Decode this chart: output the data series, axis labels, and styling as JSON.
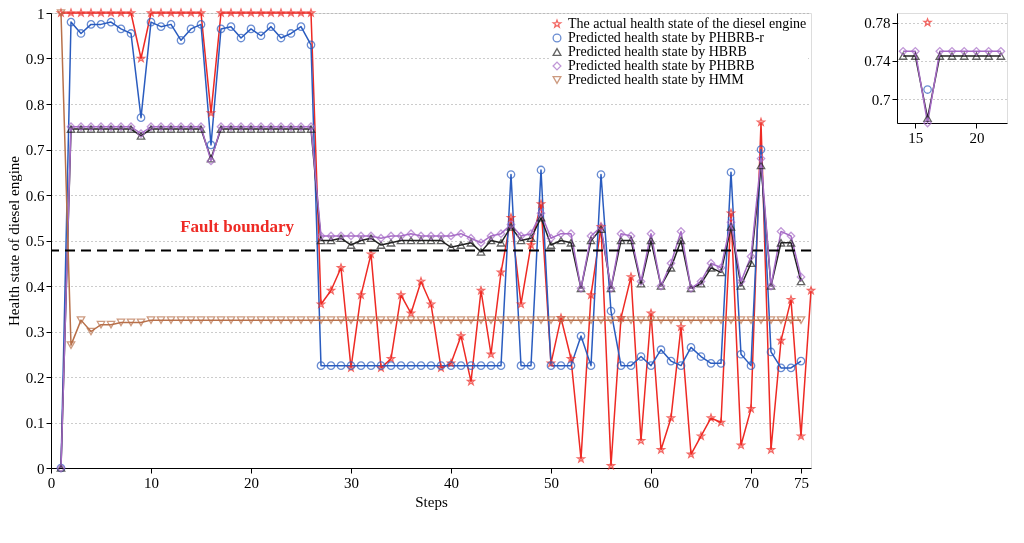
{
  "chart_data": [
    {
      "type": "line",
      "xlabel": "Steps",
      "ylabel": "Health state of diesel engine",
      "xlim": [
        0,
        76
      ],
      "xticks": [
        0,
        10,
        20,
        30,
        40,
        50,
        60,
        70,
        75
      ],
      "ylim": [
        0,
        1
      ],
      "yticks": [
        0,
        0.1,
        0.2,
        0.3,
        0.4,
        0.5,
        0.6,
        0.7,
        0.8,
        0.9,
        1
      ],
      "grid": "y",
      "legend": "top right",
      "line_style": "solid",
      "x": [
        1,
        2,
        3,
        4,
        5,
        6,
        7,
        8,
        9,
        10,
        11,
        12,
        13,
        14,
        15,
        16,
        17,
        18,
        19,
        20,
        21,
        22,
        23,
        24,
        25,
        26,
        27,
        28,
        29,
        30,
        31,
        32,
        33,
        34,
        35,
        36,
        37,
        38,
        39,
        40,
        41,
        42,
        43,
        44,
        45,
        46,
        47,
        48,
        49,
        50,
        51,
        52,
        53,
        54,
        55,
        56,
        57,
        58,
        59,
        60,
        61,
        62,
        63,
        64,
        65,
        66,
        67,
        68,
        69,
        70,
        71,
        72,
        73,
        74,
        75
      ],
      "ref_lines": [
        {
          "axis": "y",
          "value": 0.478,
          "label": "Fault boundary",
          "color": "#000000",
          "line_style": "dashed"
        }
      ],
      "series": [
        {
          "name": "The actual health state of the diesel engine",
          "color": "#ee2a24",
          "marker": "star",
          "x": [
            1,
            2,
            3,
            4,
            5,
            6,
            7,
            8,
            9,
            10,
            11,
            12,
            13,
            14,
            15,
            16,
            17,
            18,
            19,
            20,
            21,
            22,
            23,
            24,
            25,
            26,
            27,
            28,
            29,
            30,
            31,
            32,
            33,
            34,
            35,
            36,
            37,
            38,
            39,
            40,
            41,
            42,
            43,
            44,
            45,
            46,
            47,
            48,
            49,
            50,
            51,
            52,
            53,
            54,
            55,
            56,
            57,
            58,
            59,
            60,
            61,
            62,
            63,
            64,
            65,
            66,
            67,
            68,
            69,
            70,
            71,
            72,
            73,
            74,
            75,
            76
          ],
          "values": [
            1,
            1,
            1,
            1,
            1,
            1,
            1,
            1,
            0.9,
            1,
            1,
            1,
            1,
            1,
            1,
            0.78,
            1,
            1,
            1,
            1,
            1,
            1,
            1,
            1,
            1,
            1,
            0.36,
            0.39,
            0.44,
            0.22,
            0.38,
            0.47,
            0.22,
            0.24,
            0.38,
            0.34,
            0.41,
            0.36,
            0.22,
            0.23,
            0.29,
            0.19,
            0.39,
            0.25,
            0.43,
            0.55,
            0.36,
            0.49,
            0.58,
            0.23,
            0.33,
            0.24,
            0.02,
            0.38,
            0.53,
            0.005,
            0.33,
            0.42,
            0.06,
            0.34,
            0.04,
            0.11,
            0.31,
            0.03,
            0.07,
            0.11,
            0.1,
            0.56,
            0.05,
            0.13,
            0.76,
            0.04,
            0.28,
            0.37,
            0.07,
            0.39
          ]
        },
        {
          "name": "Predicted health state by PHBRB-r",
          "color": "#2a5cbf",
          "marker": "circle",
          "values": [
            0,
            0.98,
            0.955,
            0.975,
            0.975,
            0.98,
            0.965,
            0.955,
            0.77,
            0.98,
            0.97,
            0.975,
            0.94,
            0.965,
            0.975,
            0.71,
            0.965,
            0.97,
            0.945,
            0.965,
            0.95,
            0.97,
            0.945,
            0.955,
            0.97,
            0.93,
            0.225,
            0.225,
            0.225,
            0.225,
            0.225,
            0.225,
            0.225,
            0.225,
            0.225,
            0.225,
            0.225,
            0.225,
            0.225,
            0.225,
            0.225,
            0.225,
            0.225,
            0.225,
            0.225,
            0.645,
            0.225,
            0.225,
            0.655,
            0.225,
            0.225,
            0.225,
            0.29,
            0.225,
            0.645,
            0.345,
            0.225,
            0.225,
            0.245,
            0.225,
            0.26,
            0.235,
            0.225,
            0.265,
            0.245,
            0.23,
            0.23,
            0.65,
            0.25,
            0.225,
            0.7,
            0.255,
            0.22,
            0.22,
            0.235
          ]
        },
        {
          "name": "Predicted health state by HBRB",
          "color": "#222222",
          "marker": "triangle",
          "values": [
            0,
            0.745,
            0.745,
            0.745,
            0.745,
            0.745,
            0.745,
            0.745,
            0.73,
            0.745,
            0.745,
            0.745,
            0.745,
            0.745,
            0.745,
            0.68,
            0.745,
            0.745,
            0.745,
            0.745,
            0.745,
            0.745,
            0.745,
            0.745,
            0.745,
            0.745,
            0.5,
            0.5,
            0.505,
            0.49,
            0.5,
            0.505,
            0.49,
            0.495,
            0.5,
            0.5,
            0.5,
            0.5,
            0.5,
            0.485,
            0.49,
            0.495,
            0.475,
            0.5,
            0.495,
            0.53,
            0.5,
            0.505,
            0.55,
            0.49,
            0.5,
            0.495,
            0.395,
            0.5,
            0.525,
            0.395,
            0.5,
            0.5,
            0.405,
            0.5,
            0.4,
            0.44,
            0.5,
            0.395,
            0.405,
            0.44,
            0.43,
            0.53,
            0.4,
            0.45,
            0.665,
            0.4,
            0.495,
            0.495,
            0.41
          ]
        },
        {
          "name": "Predicted health state by PHBRB",
          "color": "#a66bc6",
          "marker": "diamond",
          "values": [
            0,
            0.75,
            0.75,
            0.75,
            0.75,
            0.75,
            0.75,
            0.75,
            0.735,
            0.75,
            0.75,
            0.75,
            0.75,
            0.75,
            0.75,
            0.675,
            0.75,
            0.75,
            0.75,
            0.75,
            0.75,
            0.75,
            0.75,
            0.75,
            0.75,
            0.75,
            0.51,
            0.51,
            0.51,
            0.51,
            0.51,
            0.51,
            0.505,
            0.51,
            0.51,
            0.515,
            0.51,
            0.51,
            0.51,
            0.51,
            0.515,
            0.505,
            0.495,
            0.51,
            0.515,
            0.535,
            0.51,
            0.515,
            0.56,
            0.505,
            0.515,
            0.515,
            0.395,
            0.51,
            0.53,
            0.395,
            0.515,
            0.51,
            0.41,
            0.515,
            0.4,
            0.45,
            0.52,
            0.395,
            0.41,
            0.45,
            0.44,
            0.54,
            0.41,
            0.465,
            0.68,
            0.4,
            0.52,
            0.51,
            0.42
          ]
        },
        {
          "name": "Predicted health state by HMM",
          "color": "#b8704a",
          "marker": "triangle-down",
          "values": [
            1,
            0.27,
            0.325,
            0.3,
            0.315,
            0.315,
            0.32,
            0.32,
            0.32,
            0.325,
            0.325,
            0.325,
            0.325,
            0.325,
            0.325,
            0.325,
            0.325,
            0.325,
            0.325,
            0.325,
            0.325,
            0.325,
            0.325,
            0.325,
            0.325,
            0.325,
            0.325,
            0.325,
            0.325,
            0.325,
            0.325,
            0.325,
            0.325,
            0.325,
            0.325,
            0.325,
            0.325,
            0.325,
            0.325,
            0.325,
            0.325,
            0.325,
            0.325,
            0.325,
            0.325,
            0.325,
            0.325,
            0.325,
            0.325,
            0.325,
            0.325,
            0.325,
            0.325,
            0.325,
            0.325,
            0.325,
            0.325,
            0.325,
            0.325,
            0.325,
            0.325,
            0.325,
            0.325,
            0.325,
            0.325,
            0.325,
            0.325,
            0.325,
            0.325,
            0.325,
            0.325,
            0.325,
            0.325,
            0.325,
            0.325
          ]
        }
      ]
    },
    {
      "type": "line",
      "xlim": [
        13.5,
        22.5
      ],
      "xticks": [
        15,
        20
      ],
      "ylim": [
        0.675,
        0.79
      ],
      "yticks": [
        0.7,
        0.74,
        0.78
      ],
      "grid": "y",
      "line_style": "solid",
      "x": [
        14,
        15,
        16,
        17,
        18,
        19,
        20,
        21,
        22
      ],
      "series": [
        {
          "color": "#ee2a24",
          "marker": "star",
          "values": [
            null,
            null,
            0.78,
            null,
            null,
            null,
            null,
            null,
            null
          ]
        },
        {
          "color": "#2a5cbf",
          "marker": "circle",
          "values": [
            null,
            null,
            0.71,
            null,
            null,
            null,
            null,
            null,
            null
          ]
        },
        {
          "color": "#222222",
          "marker": "triangle",
          "values": [
            0.745,
            0.745,
            0.68,
            0.745,
            0.745,
            0.745,
            0.745,
            0.745,
            0.745
          ]
        },
        {
          "color": "#a66bc6",
          "marker": "diamond",
          "values": [
            0.75,
            0.75,
            0.675,
            0.75,
            0.75,
            0.75,
            0.75,
            0.75,
            0.75
          ]
        }
      ]
    }
  ]
}
